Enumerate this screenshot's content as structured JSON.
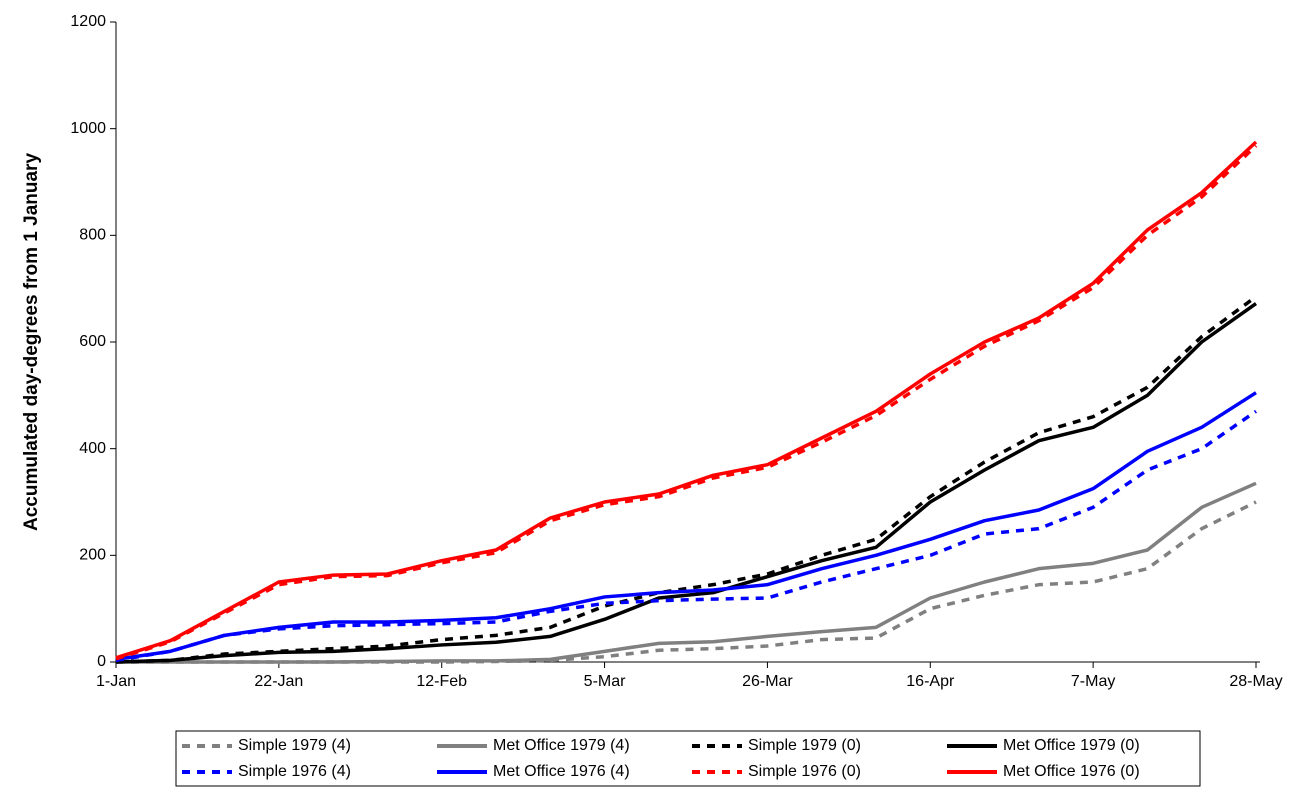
{
  "chart_data": {
    "type": "line",
    "y_label": "Accumulated day-degrees from 1 January",
    "categories": [
      "1-Jan",
      null,
      null,
      "22-Jan",
      null,
      null,
      "12-Feb",
      null,
      null,
      "5-Mar",
      null,
      null,
      "26-Mar",
      null,
      null,
      "16-Apr",
      null,
      null,
      "7-May",
      null,
      null,
      "28-May"
    ],
    "ylim": [
      0,
      1200
    ],
    "yticks": [
      0,
      200,
      400,
      600,
      800,
      1000,
      1200
    ],
    "series": [
      {
        "name": "Simple 1979 (4)",
        "color": "#808080",
        "dashed": true,
        "values": [
          0,
          0,
          0,
          0,
          0,
          0,
          0,
          1,
          3,
          10,
          22,
          25,
          30,
          42,
          45,
          100,
          125,
          145,
          150,
          175,
          250,
          300
        ]
      },
      {
        "name": "Met Office 1979 (4)",
        "color": "#808080",
        "dashed": false,
        "values": [
          0,
          0,
          0,
          0,
          0,
          1,
          2,
          2,
          5,
          20,
          35,
          38,
          48,
          57,
          65,
          120,
          150,
          175,
          185,
          210,
          290,
          335
        ]
      },
      {
        "name": "Simple 1979 (0)",
        "color": "#000000",
        "dashed": true,
        "values": [
          0,
          3,
          15,
          20,
          25,
          30,
          42,
          50,
          65,
          105,
          130,
          145,
          165,
          200,
          230,
          310,
          375,
          430,
          460,
          515,
          610,
          685
        ]
      },
      {
        "name": "Met Office 1979 (0)",
        "color": "#000000",
        "dashed": false,
        "values": [
          0,
          3,
          12,
          18,
          20,
          25,
          32,
          37,
          48,
          80,
          120,
          130,
          160,
          190,
          215,
          300,
          360,
          415,
          440,
          500,
          600,
          672
        ]
      },
      {
        "name": "Simple 1976 (4)",
        "color": "#0000ff",
        "dashed": true,
        "values": [
          3,
          20,
          50,
          62,
          68,
          70,
          72,
          75,
          95,
          110,
          115,
          118,
          120,
          150,
          175,
          200,
          240,
          250,
          290,
          360,
          400,
          470
        ]
      },
      {
        "name": "Met Office 1976 (4)",
        "color": "#0000ff",
        "dashed": false,
        "values": [
          5,
          20,
          50,
          65,
          75,
          75,
          78,
          83,
          100,
          122,
          130,
          135,
          145,
          175,
          200,
          230,
          265,
          285,
          325,
          395,
          440,
          505
        ]
      },
      {
        "name": "Simple 1976 (0)",
        "color": "#ff0000",
        "dashed": true,
        "values": [
          6,
          38,
          92,
          145,
          160,
          162,
          186,
          205,
          265,
          295,
          310,
          345,
          365,
          412,
          462,
          530,
          592,
          640,
          702,
          800,
          872,
          968
        ]
      },
      {
        "name": "Met Office 1976 (0)",
        "color": "#ff0000",
        "dashed": false,
        "values": [
          8,
          40,
          95,
          150,
          163,
          165,
          190,
          210,
          270,
          300,
          315,
          350,
          370,
          420,
          470,
          540,
          600,
          645,
          710,
          810,
          880,
          975
        ]
      }
    ]
  }
}
